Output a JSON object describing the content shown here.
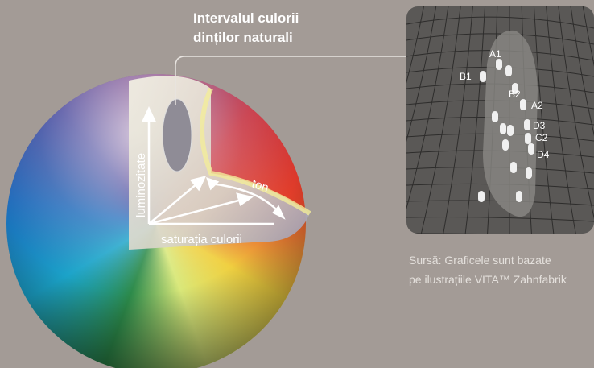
{
  "title": {
    "line1": "Intervalul culorii",
    "line2": "dinților naturali"
  },
  "axes": {
    "lightness": "luminozitate",
    "saturation": "saturația culorii",
    "hue": "ton"
  },
  "shades": [
    "A1",
    "B1",
    "B2",
    "A2",
    "D3",
    "C2",
    "D4"
  ],
  "source": {
    "line1": "Sursă: Graficele sunt bazate",
    "line2": "pe ilustrațiile VITA™ Zahnfabrik"
  }
}
